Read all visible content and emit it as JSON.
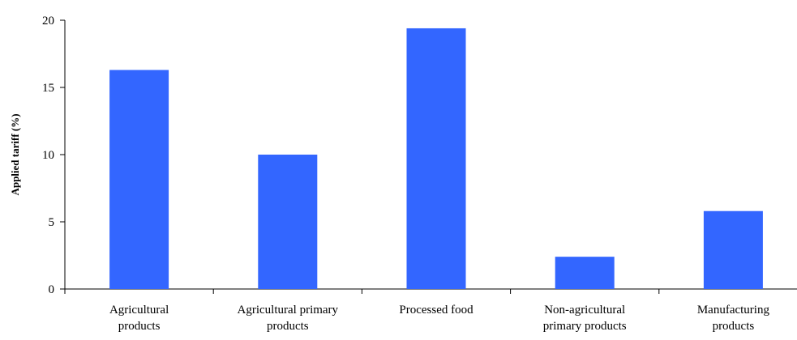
{
  "chart_data": {
    "type": "bar",
    "title": "",
    "xlabel": "",
    "ylabel": "Applied tariff (%)",
    "ylim": [
      0,
      20
    ],
    "yticks": [
      0,
      5,
      10,
      15,
      20
    ],
    "grid": false,
    "bar_color": "#3366FF",
    "categories": [
      [
        "Agricultural",
        "products"
      ],
      [
        "Agricultural primary",
        "products"
      ],
      [
        "Processed food"
      ],
      [
        "Non-agricultural",
        "primary products"
      ],
      [
        "Manufacturing",
        "products"
      ]
    ],
    "values": [
      16.3,
      10.0,
      19.4,
      2.4,
      5.8
    ]
  }
}
